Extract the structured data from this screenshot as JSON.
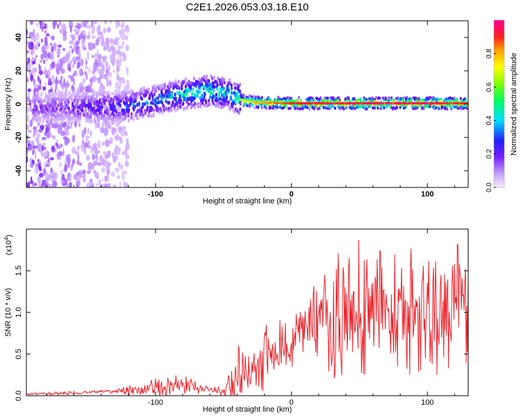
{
  "figure": {
    "title": "C2E1.2026.053.03.18.E10"
  },
  "chart_data": [
    {
      "type": "heatmap",
      "xlabel": "Height of straight line (km)",
      "ylabel": "Frequency (Hz)",
      "xlim": [
        -195,
        130
      ],
      "ylim": [
        -50,
        50
      ],
      "xticks": [
        -100,
        0,
        100
      ],
      "yticks": [
        -40,
        -20,
        0,
        20,
        40
      ],
      "colorbar": {
        "label": "Normalized spectral amplitude",
        "range": [
          0,
          1
        ],
        "ticks": [
          "0.0",
          "0.2",
          "0.4",
          "0.6",
          "0.8"
        ],
        "colors": [
          "#e8d8ff",
          "#b070ff",
          "#6a00ff",
          "#1010ff",
          "#00d8ff",
          "#00ff80",
          "#80ff00",
          "#ffff00",
          "#ffa000",
          "#ff2020",
          "#ff00a0"
        ]
      },
      "description_of_values": "Frequency center line vs height: scattered weak signal (approx -50 to 50 Hz) below -120 km; signal band rising from ~0 Hz at -130 km to ~8 Hz near -60 km; collapses to narrow strong band at ~0.5 Hz from -35 km to 130 km.",
      "center_frequency": {
        "x": [
          -170,
          -140,
          -120,
          -100,
          -80,
          -60,
          -45,
          -35,
          -25,
          0,
          50,
          100,
          130
        ],
        "y": [
          -2,
          -2,
          -1,
          2,
          6,
          8,
          6,
          2,
          1,
          0.5,
          0.5,
          0.5,
          0.5
        ],
        "peak_amplitude": [
          0.2,
          0.3,
          0.35,
          0.4,
          0.5,
          0.55,
          0.5,
          0.7,
          0.8,
          0.9,
          0.95,
          0.95,
          0.9
        ]
      }
    },
    {
      "type": "line",
      "xlabel": "Height of straight line (km)",
      "ylabel": "SNR (10 * v/v)",
      "y_multiplier": "(x10",
      "y_multiplier_exponent": "4",
      "y_multiplier_close": ")",
      "xlim": [
        -195,
        130
      ],
      "ylim": [
        0,
        2
      ],
      "xticks": [
        -100,
        0,
        100
      ],
      "yticks": [
        "0.0",
        "0.5",
        "1.0",
        "1.5"
      ],
      "color": "#e8232a",
      "series": [
        {
          "x": [
            -195,
            -170,
            -150,
            -130,
            -120,
            -110,
            -100,
            -90,
            -80,
            -70,
            -60,
            -50,
            -45,
            -40,
            -35,
            -30,
            -25,
            -20,
            -15,
            -10,
            -5,
            0,
            10,
            20,
            30,
            40,
            50,
            60,
            70,
            80,
            90,
            100,
            110,
            120,
            125,
            130
          ],
          "values": [
            0.02,
            0.03,
            0.04,
            0.05,
            0.06,
            0.08,
            0.1,
            0.13,
            0.12,
            0.1,
            0.08,
            0.05,
            0.1,
            0.25,
            0.35,
            0.3,
            0.35,
            0.45,
            0.5,
            0.55,
            0.6,
            0.65,
            0.75,
            0.85,
            0.95,
            1.0,
            1.05,
            1.0,
            1.05,
            1.0,
            1.05,
            1.0,
            1.0,
            1.0,
            1.1,
            0.9
          ],
          "peak_values": [
            0.03,
            0.05,
            0.06,
            0.07,
            0.12,
            0.15,
            0.22,
            0.28,
            0.25,
            0.18,
            0.12,
            0.1,
            0.35,
            0.6,
            0.75,
            0.55,
            0.65,
            0.85,
            0.8,
            0.85,
            0.9,
            0.95,
            1.2,
            1.45,
            1.7,
            1.75,
            1.8,
            1.6,
            1.75,
            1.7,
            1.85,
            1.65,
            1.6,
            1.7,
            1.9,
            1.6
          ]
        }
      ]
    }
  ]
}
